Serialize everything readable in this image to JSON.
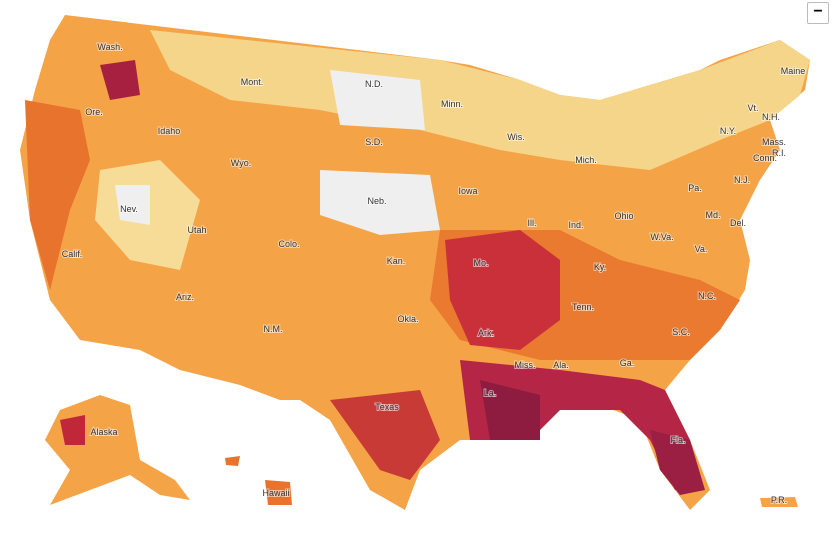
{
  "map": {
    "zoom_button": "−",
    "labels": [
      "Wash.",
      "Mont.",
      "N.D.",
      "Minn.",
      "Maine",
      "Ore.",
      "Idaho",
      "S.D.",
      "Wis.",
      "Mich.",
      "N.Y.",
      "Vt.",
      "N.H.",
      "Mass.",
      "R.I.",
      "Conn.",
      "Wyo.",
      "Nev.",
      "Neb.",
      "Iowa",
      "Pa.",
      "N.J.",
      "Ohio",
      "Utah",
      "Colo.",
      "Kan.",
      "Ill.",
      "Ind.",
      "W.Va.",
      "Md.",
      "Del.",
      "Va.",
      "Calif.",
      "Mo.",
      "Ky.",
      "Tenn.",
      "N.C.",
      "Ariz.",
      "N.M.",
      "Okla.",
      "Ark.",
      "S.C.",
      "Miss.",
      "Ala.",
      "Ga.",
      "Texas",
      "La.",
      "Fla.",
      "Alaska",
      "Hawaii",
      "P.R."
    ]
  }
}
